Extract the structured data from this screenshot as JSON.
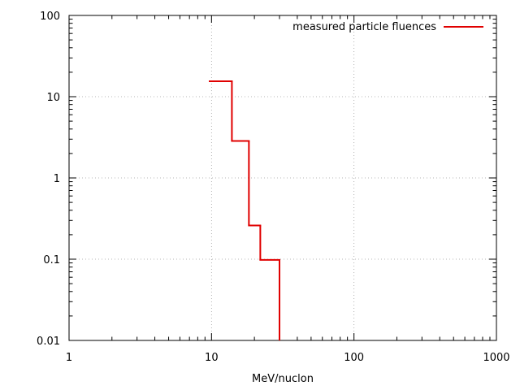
{
  "chart_data": {
    "type": "line",
    "plot_style": "step",
    "title": "",
    "xlabel": "MeV/nuclon",
    "ylabel": "",
    "x_scale": "log",
    "y_scale": "log",
    "xlim": [
      1,
      1000
    ],
    "ylim": [
      0.01,
      100
    ],
    "x_ticks": [
      "1",
      "10",
      "100",
      "1000"
    ],
    "y_ticks": [
      "0.01",
      "0.1",
      "1",
      "10",
      "100"
    ],
    "grid": true,
    "legend_position": "top-right",
    "series": [
      {
        "name": "measured particle fluences",
        "color": "#e00000",
        "steps": [
          {
            "x_start": 9.7,
            "x_end": 13.9,
            "y": 15.5
          },
          {
            "x_start": 13.9,
            "x_end": 18.3,
            "y": 2.85
          },
          {
            "x_start": 18.3,
            "x_end": 22.0,
            "y": 0.26
          },
          {
            "x_start": 22.0,
            "x_end": 30.0,
            "y": 0.098
          }
        ],
        "drop_to": 0.01
      }
    ]
  }
}
